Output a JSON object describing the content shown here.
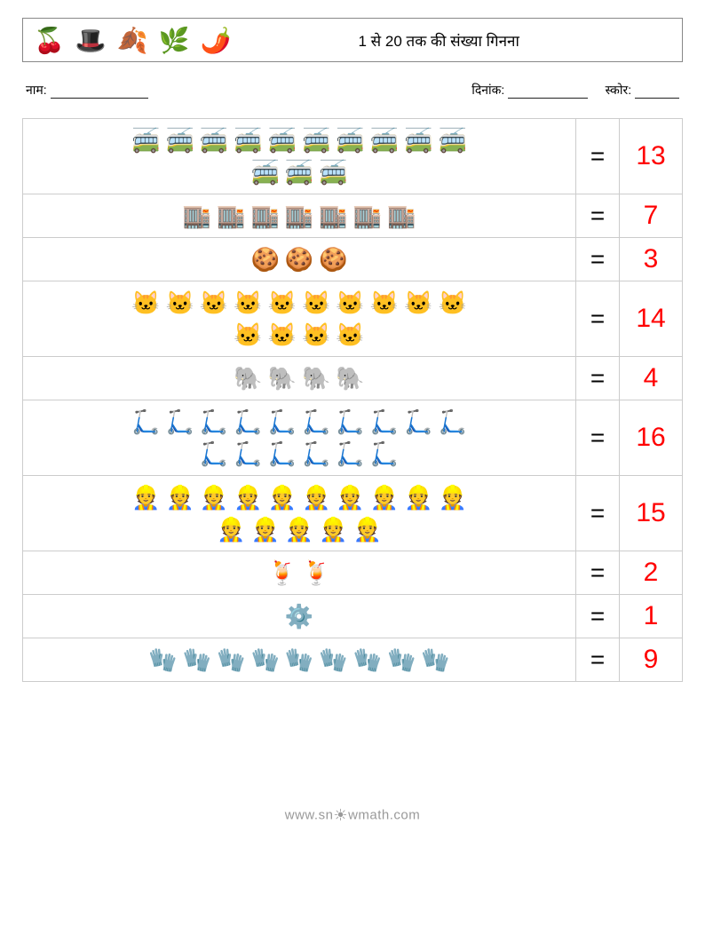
{
  "header": {
    "icons": [
      "🍒",
      "🎩",
      "🍂",
      "🌿",
      "🌶️"
    ],
    "title": "1 से 20 तक की संख्या गिनना"
  },
  "meta": {
    "name_label": "नाम:",
    "date_label": "दिनांक:",
    "score_label": "स्कोर:",
    "name_blank_width": 110,
    "date_blank_width": 90,
    "score_blank_width": 50
  },
  "equals_sign": "=",
  "answer_color": "#ff0000",
  "rows": [
    {
      "icon": "🚎",
      "count": 13,
      "answer": "13",
      "per_row": 10
    },
    {
      "icon": "🏬",
      "count": 7,
      "answer": "7",
      "per_row": 10
    },
    {
      "icon": "🍪",
      "count": 3,
      "answer": "3",
      "per_row": 10
    },
    {
      "icon": "🐱",
      "count": 14,
      "answer": "14",
      "per_row": 10
    },
    {
      "icon": "🐘",
      "count": 4,
      "answer": "4",
      "per_row": 10
    },
    {
      "icon": "🛴",
      "count": 16,
      "answer": "16",
      "per_row": 10
    },
    {
      "icon": "👷",
      "count": 15,
      "answer": "15",
      "per_row": 10
    },
    {
      "icon": "🍹",
      "count": 2,
      "answer": "2",
      "per_row": 10
    },
    {
      "icon": "⚙️",
      "count": 1,
      "answer": "1",
      "per_row": 10
    },
    {
      "icon": "🧤",
      "count": 9,
      "answer": "9",
      "per_row": 10
    }
  ],
  "footer": {
    "text_before": "www.sn",
    "text_after": "wmath.com",
    "sun_glyph": "☀"
  }
}
